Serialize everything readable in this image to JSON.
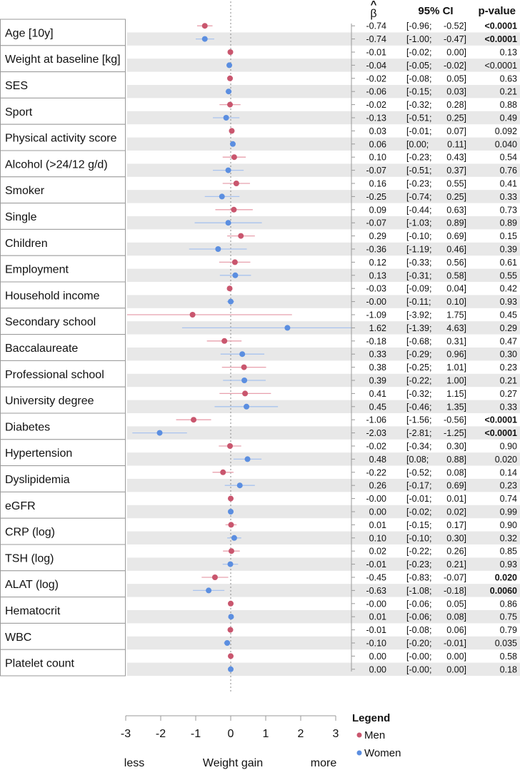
{
  "chart_data": {
    "type": "forest",
    "xlabel": "Weight gain",
    "xlabel_left": "less",
    "xlabel_right": "more",
    "xlim": [
      -3,
      3
    ],
    "xticks": [
      "-3",
      "-2",
      "-1",
      "0",
      "1",
      "2",
      "3"
    ],
    "headers": {
      "beta": "β",
      "beta_hat": "^",
      "ci": "95% CI",
      "p": "p-value"
    },
    "legend": {
      "title": "Legend",
      "items": [
        {
          "name": "Men",
          "color": "#c9566e"
        },
        {
          "name": "Women",
          "color": "#5b8ee0"
        }
      ]
    },
    "colors": {
      "stripe": "#e8e8e8",
      "men_ci": "#e8a0ad",
      "women_ci": "#a9c3ee"
    },
    "variables": [
      {
        "label": "Age [10y]",
        "rows": [
          {
            "group": "Men",
            "beta": -0.74,
            "lo": -0.96,
            "hi": -0.52,
            "beta_s": "-0.74",
            "lo_s": "-0.96",
            "hi_s": "-0.52",
            "p": "<0.0001",
            "sig": true
          },
          {
            "group": "Women",
            "beta": -0.74,
            "lo": -1.0,
            "hi": -0.47,
            "beta_s": "-0.74",
            "lo_s": "-1.00",
            "hi_s": "-0.47",
            "p": "<0.0001",
            "sig": true
          }
        ]
      },
      {
        "label": "Weight at baseline [kg]",
        "rows": [
          {
            "group": "Men",
            "beta": -0.01,
            "lo": -0.02,
            "hi": 0.0,
            "beta_s": "-0.01",
            "lo_s": "-0.02",
            "hi_s": "0.00",
            "p": "0.13",
            "sig": false
          },
          {
            "group": "Women",
            "beta": -0.04,
            "lo": -0.05,
            "hi": -0.02,
            "beta_s": "-0.04",
            "lo_s": "-0.05",
            "hi_s": "-0.02",
            "p": "<0.0001",
            "sig": false
          }
        ]
      },
      {
        "label": "SES",
        "rows": [
          {
            "group": "Men",
            "beta": -0.02,
            "lo": -0.08,
            "hi": 0.05,
            "beta_s": "-0.02",
            "lo_s": "-0.08",
            "hi_s": "0.05",
            "p": "0.63",
            "sig": false
          },
          {
            "group": "Women",
            "beta": -0.06,
            "lo": -0.15,
            "hi": 0.03,
            "beta_s": "-0.06",
            "lo_s": "-0.15",
            "hi_s": "0.03",
            "p": "0.21",
            "sig": false
          }
        ]
      },
      {
        "label": "Sport",
        "rows": [
          {
            "group": "Men",
            "beta": -0.02,
            "lo": -0.32,
            "hi": 0.28,
            "beta_s": "-0.02",
            "lo_s": "-0.32",
            "hi_s": "0.28",
            "p": "0.88",
            "sig": false
          },
          {
            "group": "Women",
            "beta": -0.13,
            "lo": -0.51,
            "hi": 0.25,
            "beta_s": "-0.13",
            "lo_s": "-0.51",
            "hi_s": "0.25",
            "p": "0.49",
            "sig": false
          }
        ]
      },
      {
        "label": "Physical activity score",
        "rows": [
          {
            "group": "Men",
            "beta": 0.03,
            "lo": -0.01,
            "hi": 0.07,
            "beta_s": "0.03",
            "lo_s": "-0.01",
            "hi_s": "0.07",
            "p": "0.092",
            "sig": false
          },
          {
            "group": "Women",
            "beta": 0.06,
            "lo": 0.0,
            "hi": 0.11,
            "beta_s": "0.06",
            "lo_s": "0.00",
            "hi_s": "0.11",
            "p": "0.040",
            "sig": false
          }
        ]
      },
      {
        "label": "Alcohol (>24/12 g/d)",
        "rows": [
          {
            "group": "Men",
            "beta": 0.1,
            "lo": -0.23,
            "hi": 0.43,
            "beta_s": "0.10",
            "lo_s": "-0.23",
            "hi_s": "0.43",
            "p": "0.54",
            "sig": false
          },
          {
            "group": "Women",
            "beta": -0.07,
            "lo": -0.51,
            "hi": 0.37,
            "beta_s": "-0.07",
            "lo_s": "-0.51",
            "hi_s": "0.37",
            "p": "0.76",
            "sig": false
          }
        ]
      },
      {
        "label": "Smoker",
        "rows": [
          {
            "group": "Men",
            "beta": 0.16,
            "lo": -0.23,
            "hi": 0.55,
            "beta_s": "0.16",
            "lo_s": "-0.23",
            "hi_s": "0.55",
            "p": "0.41",
            "sig": false
          },
          {
            "group": "Women",
            "beta": -0.25,
            "lo": -0.74,
            "hi": 0.25,
            "beta_s": "-0.25",
            "lo_s": "-0.74",
            "hi_s": "0.25",
            "p": "0.33",
            "sig": false
          }
        ]
      },
      {
        "label": "Single",
        "rows": [
          {
            "group": "Men",
            "beta": 0.09,
            "lo": -0.44,
            "hi": 0.63,
            "beta_s": "0.09",
            "lo_s": "-0.44",
            "hi_s": "0.63",
            "p": "0.73",
            "sig": false
          },
          {
            "group": "Women",
            "beta": -0.07,
            "lo": -1.03,
            "hi": 0.89,
            "beta_s": "-0.07",
            "lo_s": "-1.03",
            "hi_s": "0.89",
            "p": "0.89",
            "sig": false
          }
        ]
      },
      {
        "label": "Children",
        "rows": [
          {
            "group": "Men",
            "beta": 0.29,
            "lo": -0.1,
            "hi": 0.69,
            "beta_s": "0.29",
            "lo_s": "-0.10",
            "hi_s": "0.69",
            "p": "0.15",
            "sig": false
          },
          {
            "group": "Women",
            "beta": -0.36,
            "lo": -1.19,
            "hi": 0.46,
            "beta_s": "-0.36",
            "lo_s": "-1.19",
            "hi_s": "0.46",
            "p": "0.39",
            "sig": false
          }
        ]
      },
      {
        "label": "Employment",
        "rows": [
          {
            "group": "Men",
            "beta": 0.12,
            "lo": -0.33,
            "hi": 0.56,
            "beta_s": "0.12",
            "lo_s": "-0.33",
            "hi_s": "0.56",
            "p": "0.61",
            "sig": false
          },
          {
            "group": "Women",
            "beta": 0.13,
            "lo": -0.31,
            "hi": 0.58,
            "beta_s": "0.13",
            "lo_s": "-0.31",
            "hi_s": "0.58",
            "p": "0.55",
            "sig": false
          }
        ]
      },
      {
        "label": "Household income",
        "rows": [
          {
            "group": "Men",
            "beta": -0.03,
            "lo": -0.09,
            "hi": 0.04,
            "beta_s": "-0.03",
            "lo_s": "-0.09",
            "hi_s": "0.04",
            "p": "0.42",
            "sig": false
          },
          {
            "group": "Women",
            "beta": 0.0,
            "lo": -0.11,
            "hi": 0.1,
            "beta_s": "-0.00",
            "lo_s": "-0.11",
            "hi_s": "0.10",
            "p": "0.93",
            "sig": false
          }
        ]
      },
      {
        "label": "Secondary school",
        "rows": [
          {
            "group": "Men",
            "beta": -1.09,
            "lo": -3.92,
            "hi": 1.75,
            "beta_s": "-1.09",
            "lo_s": "-3.92",
            "hi_s": "1.75",
            "p": "0.45",
            "sig": false
          },
          {
            "group": "Women",
            "beta": 1.62,
            "lo": -1.39,
            "hi": 4.63,
            "beta_s": "1.62",
            "lo_s": "-1.39",
            "hi_s": "4.63",
            "p": "0.29",
            "sig": false
          }
        ]
      },
      {
        "label": "Baccalaureate",
        "rows": [
          {
            "group": "Men",
            "beta": -0.18,
            "lo": -0.68,
            "hi": 0.31,
            "beta_s": "-0.18",
            "lo_s": "-0.68",
            "hi_s": "0.31",
            "p": "0.47",
            "sig": false
          },
          {
            "group": "Women",
            "beta": 0.33,
            "lo": -0.29,
            "hi": 0.96,
            "beta_s": "0.33",
            "lo_s": "-0.29",
            "hi_s": "0.96",
            "p": "0.30",
            "sig": false
          }
        ]
      },
      {
        "label": "Professional school",
        "rows": [
          {
            "group": "Men",
            "beta": 0.38,
            "lo": -0.25,
            "hi": 1.01,
            "beta_s": "0.38",
            "lo_s": "-0.25",
            "hi_s": "1.01",
            "p": "0.23",
            "sig": false
          },
          {
            "group": "Women",
            "beta": 0.39,
            "lo": -0.22,
            "hi": 1.0,
            "beta_s": "0.39",
            "lo_s": "-0.22",
            "hi_s": "1.00",
            "p": "0.21",
            "sig": false
          }
        ]
      },
      {
        "label": "University degree",
        "rows": [
          {
            "group": "Men",
            "beta": 0.41,
            "lo": -0.32,
            "hi": 1.15,
            "beta_s": "0.41",
            "lo_s": "-0.32",
            "hi_s": "1.15",
            "p": "0.27",
            "sig": false
          },
          {
            "group": "Women",
            "beta": 0.45,
            "lo": -0.46,
            "hi": 1.35,
            "beta_s": "0.45",
            "lo_s": "-0.46",
            "hi_s": "1.35",
            "p": "0.33",
            "sig": false
          }
        ]
      },
      {
        "label": "Diabetes",
        "rows": [
          {
            "group": "Men",
            "beta": -1.06,
            "lo": -1.56,
            "hi": -0.56,
            "beta_s": "-1.06",
            "lo_s": "-1.56",
            "hi_s": "-0.56",
            "p": "<0.0001",
            "sig": true
          },
          {
            "group": "Women",
            "beta": -2.03,
            "lo": -2.81,
            "hi": -1.25,
            "beta_s": "-2.03",
            "lo_s": "-2.81",
            "hi_s": "-1.25",
            "p": "<0.0001",
            "sig": true
          }
        ]
      },
      {
        "label": "Hypertension",
        "rows": [
          {
            "group": "Men",
            "beta": -0.02,
            "lo": -0.34,
            "hi": 0.3,
            "beta_s": "-0.02",
            "lo_s": "-0.34",
            "hi_s": "0.30",
            "p": "0.90",
            "sig": false
          },
          {
            "group": "Women",
            "beta": 0.48,
            "lo": 0.08,
            "hi": 0.88,
            "beta_s": "0.48",
            "lo_s": "0.08",
            "hi_s": "0.88",
            "p": "0.020",
            "sig": false
          }
        ]
      },
      {
        "label": "Dyslipidemia",
        "rows": [
          {
            "group": "Men",
            "beta": -0.22,
            "lo": -0.52,
            "hi": 0.08,
            "beta_s": "-0.22",
            "lo_s": "-0.52",
            "hi_s": "0.08",
            "p": "0.14",
            "sig": false
          },
          {
            "group": "Women",
            "beta": 0.26,
            "lo": -0.17,
            "hi": 0.69,
            "beta_s": "0.26",
            "lo_s": "-0.17",
            "hi_s": "0.69",
            "p": "0.23",
            "sig": false
          }
        ]
      },
      {
        "label": "eGFR",
        "rows": [
          {
            "group": "Men",
            "beta": 0.0,
            "lo": -0.01,
            "hi": 0.01,
            "beta_s": "-0.00",
            "lo_s": "-0.01",
            "hi_s": "0.01",
            "p": "0.74",
            "sig": false
          },
          {
            "group": "Women",
            "beta": 0.0,
            "lo": -0.02,
            "hi": 0.02,
            "beta_s": "0.00",
            "lo_s": "-0.02",
            "hi_s": "0.02",
            "p": "0.99",
            "sig": false
          }
        ]
      },
      {
        "label": "CRP (log)",
        "rows": [
          {
            "group": "Men",
            "beta": 0.01,
            "lo": -0.15,
            "hi": 0.17,
            "beta_s": "0.01",
            "lo_s": "-0.15",
            "hi_s": "0.17",
            "p": "0.90",
            "sig": false
          },
          {
            "group": "Women",
            "beta": 0.1,
            "lo": -0.1,
            "hi": 0.3,
            "beta_s": "0.10",
            "lo_s": "-0.10",
            "hi_s": "0.30",
            "p": "0.32",
            "sig": false
          }
        ]
      },
      {
        "label": "TSH (log)",
        "rows": [
          {
            "group": "Men",
            "beta": 0.02,
            "lo": -0.22,
            "hi": 0.26,
            "beta_s": "0.02",
            "lo_s": "-0.22",
            "hi_s": "0.26",
            "p": "0.85",
            "sig": false
          },
          {
            "group": "Women",
            "beta": -0.01,
            "lo": -0.23,
            "hi": 0.21,
            "beta_s": "-0.01",
            "lo_s": "-0.23",
            "hi_s": "0.21",
            "p": "0.93",
            "sig": false
          }
        ]
      },
      {
        "label": "ALAT (log)",
        "rows": [
          {
            "group": "Men",
            "beta": -0.45,
            "lo": -0.83,
            "hi": -0.07,
            "beta_s": "-0.45",
            "lo_s": "-0.83",
            "hi_s": "-0.07",
            "p": "0.020",
            "sig": true
          },
          {
            "group": "Women",
            "beta": -0.63,
            "lo": -1.08,
            "hi": -0.18,
            "beta_s": "-0.63",
            "lo_s": "-1.08",
            "hi_s": "-0.18",
            "p": "0.0060",
            "sig": true
          }
        ]
      },
      {
        "label": "Hematocrit",
        "rows": [
          {
            "group": "Men",
            "beta": 0.0,
            "lo": -0.06,
            "hi": 0.05,
            "beta_s": "-0.00",
            "lo_s": "-0.06",
            "hi_s": "0.05",
            "p": "0.86",
            "sig": false
          },
          {
            "group": "Women",
            "beta": 0.01,
            "lo": -0.06,
            "hi": 0.08,
            "beta_s": "0.01",
            "lo_s": "-0.06",
            "hi_s": "0.08",
            "p": "0.75",
            "sig": false
          }
        ]
      },
      {
        "label": "WBC",
        "rows": [
          {
            "group": "Men",
            "beta": -0.01,
            "lo": -0.08,
            "hi": 0.06,
            "beta_s": "-0.01",
            "lo_s": "-0.08",
            "hi_s": "0.06",
            "p": "0.79",
            "sig": false
          },
          {
            "group": "Women",
            "beta": -0.1,
            "lo": -0.2,
            "hi": -0.01,
            "beta_s": "-0.10",
            "lo_s": "-0.20",
            "hi_s": "-0.01",
            "p": "0.035",
            "sig": false
          }
        ]
      },
      {
        "label": "Platelet count",
        "rows": [
          {
            "group": "Men",
            "beta": 0.0,
            "lo": 0.0,
            "hi": 0.0,
            "beta_s": "0.00",
            "lo_s": "-0.00",
            "hi_s": "0.00",
            "p": "0.58",
            "sig": false
          },
          {
            "group": "Women",
            "beta": 0.0,
            "lo": 0.0,
            "hi": 0.0,
            "beta_s": "0.00",
            "lo_s": "-0.00",
            "hi_s": "0.00",
            "p": "0.18",
            "sig": false
          }
        ]
      }
    ]
  }
}
